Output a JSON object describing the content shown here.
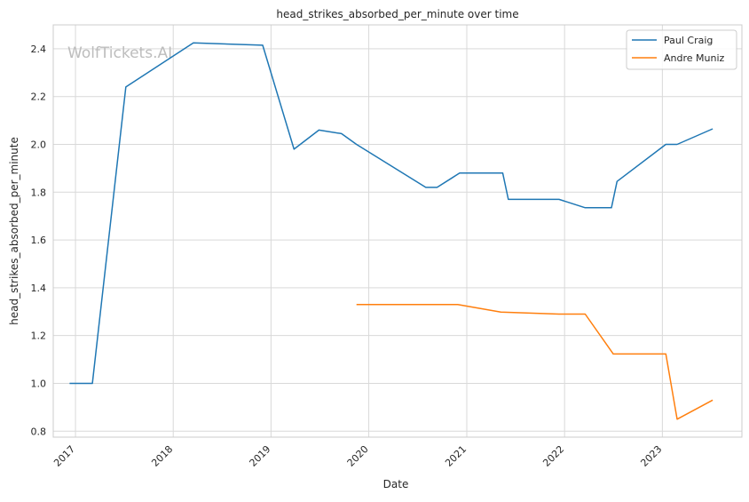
{
  "chart_data": {
    "type": "line",
    "title": "head_strikes_absorbed_per_minute over time",
    "xlabel": "Date",
    "ylabel": "head_strikes_absorbed_per_minute",
    "watermark": "WolfTickets.AI",
    "x_ticks": [
      "2017",
      "2018",
      "2019",
      "2020",
      "2021",
      "2022",
      "2023"
    ],
    "y_ticks": [
      "0.8",
      "1.0",
      "1.2",
      "1.4",
      "1.6",
      "1.8",
      "2.0",
      "2.2",
      "2.4"
    ],
    "xlim": [
      "2016-10-10",
      "2023-10-25"
    ],
    "ylim": [
      0.775,
      2.5
    ],
    "grid": true,
    "legend_position": "top-right",
    "series": [
      {
        "name": "Paul Craig",
        "color": "#1f77b4",
        "points": [
          [
            "2016-12-10",
            1.0
          ],
          [
            "2017-03-05",
            1.0
          ],
          [
            "2017-07-08",
            2.24
          ],
          [
            "2018-03-17",
            2.425
          ],
          [
            "2018-12-01",
            2.415
          ],
          [
            "2019-03-28",
            1.98
          ],
          [
            "2019-06-29",
            2.06
          ],
          [
            "2019-09-21",
            2.045
          ],
          [
            "2019-11-16",
            2.0
          ],
          [
            "2020-08-01",
            1.82
          ],
          [
            "2020-09-12",
            1.82
          ],
          [
            "2020-12-05",
            1.88
          ],
          [
            "2021-05-15",
            1.88
          ],
          [
            "2021-06-05",
            1.77
          ],
          [
            "2021-12-11",
            1.77
          ],
          [
            "2022-03-19",
            1.735
          ],
          [
            "2022-06-25",
            1.735
          ],
          [
            "2022-07-16",
            1.845
          ],
          [
            "2023-01-14",
            2.0
          ],
          [
            "2023-02-25",
            2.0
          ],
          [
            "2023-07-08",
            2.065
          ]
        ]
      },
      {
        "name": "Andre Muniz",
        "color": "#ff7f0e",
        "points": [
          [
            "2019-11-16",
            1.33
          ],
          [
            "2020-11-28",
            1.33
          ],
          [
            "2021-05-08",
            1.298
          ],
          [
            "2021-12-11",
            1.29
          ],
          [
            "2022-03-19",
            1.29
          ],
          [
            "2022-07-02",
            1.123
          ],
          [
            "2023-01-14",
            1.123
          ],
          [
            "2023-02-25",
            0.85
          ],
          [
            "2023-07-08",
            0.93
          ]
        ]
      }
    ]
  }
}
